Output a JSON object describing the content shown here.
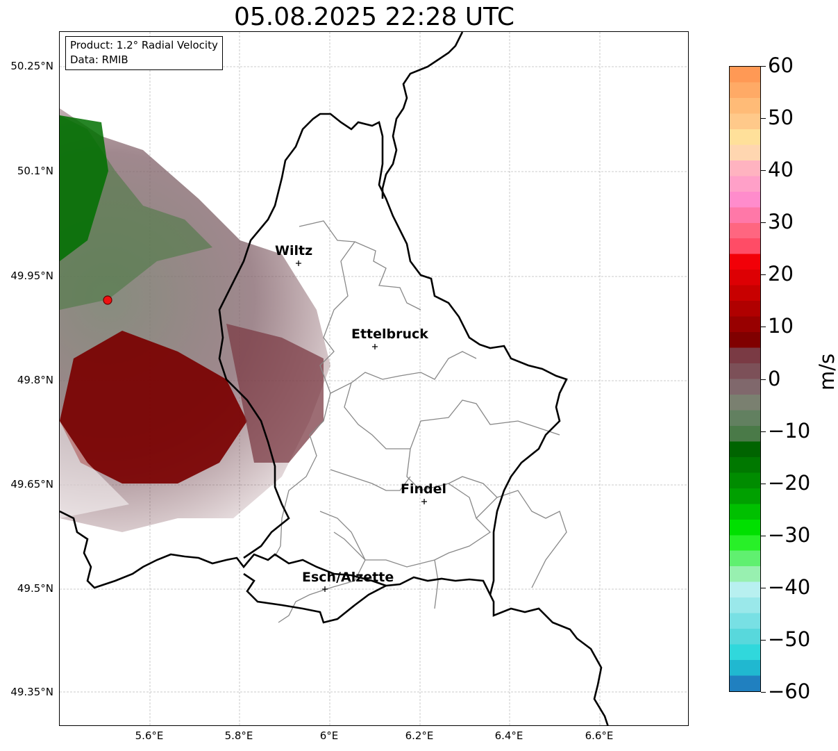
{
  "title": "05.08.2025 22:28 UTC",
  "info_box": {
    "product": "Product: 1.2° Radial Velocity",
    "data_source": "Data: RMIB"
  },
  "lat_ticks": [
    "50.25°N",
    "50.1°N",
    "49.95°N",
    "49.8°N",
    "49.65°N",
    "49.5°N",
    "49.35°N"
  ],
  "lon_ticks": [
    "5.6°E",
    "5.8°E",
    "6°E",
    "6.2°E",
    "6.4°E",
    "6.6°E"
  ],
  "cities": [
    {
      "name": "Wiltz",
      "lon": 5.94,
      "lat": 49.966
    },
    {
      "name": "Ettelbruck",
      "lon": 6.1,
      "lat": 49.847
    },
    {
      "name": "Findel",
      "lon": 6.21,
      "lat": 49.623
    },
    {
      "name": "Esch/Alzette",
      "lon": 5.98,
      "lat": 49.496
    }
  ],
  "radar_site": {
    "lon": 5.505,
    "lat": 49.914
  },
  "colorbar": {
    "unit": "m/s",
    "ticks": [
      "60",
      "50",
      "40",
      "30",
      "20",
      "10",
      "0",
      "−10",
      "−20",
      "−30",
      "−40",
      "−50",
      "−60"
    ],
    "range": [
      -60,
      60
    ],
    "colors_top_to_bottom": [
      "#ff9955",
      "#ffaa66",
      "#ffbb77",
      "#ffc98a",
      "#ffe09a",
      "#ffd6b0",
      "#ffb3c0",
      "#ffa0c8",
      "#ff8ccc",
      "#ff78a8",
      "#ff6680",
      "#ff4c66",
      "#f20008",
      "#dd0004",
      "#c80000",
      "#b00000",
      "#980000",
      "#800000",
      "#7a3a44",
      "#7c5058",
      "#80686c",
      "#7a8070",
      "#628060",
      "#4a7a48",
      "#006400",
      "#007800",
      "#008c00",
      "#00a000",
      "#00c000",
      "#00e000",
      "#28f028",
      "#60f070",
      "#98f0b0",
      "#b8f0f0",
      "#9ae8ea",
      "#78e0e4",
      "#58d8dc",
      "#30d8dc",
      "#20b8d0",
      "#2080c0"
    ]
  }
}
